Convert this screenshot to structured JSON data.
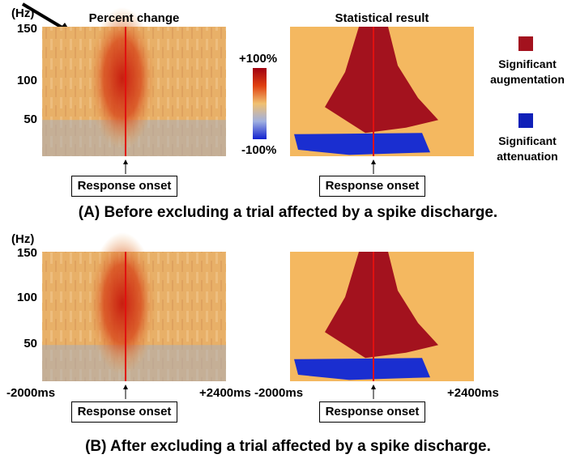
{
  "panels": [
    {
      "caption": "(A) Before excluding a trial affected by a spike discharge.",
      "y_axis_label": "(Hz)",
      "y_ticks": [
        "150",
        "100",
        "50"
      ],
      "plots": [
        {
          "title": "Percent change",
          "onset_label": "Response onset"
        },
        {
          "title": "Statistical result",
          "onset_label": "Response onset"
        }
      ]
    },
    {
      "caption": "(B) After excluding a trial affected by a spike discharge.",
      "y_axis_label": "(Hz)",
      "y_ticks": [
        "150",
        "100",
        "50"
      ],
      "plots": [
        {
          "onset_label": "Response onset",
          "x_start_label": "-2000ms",
          "x_end_label": "+2400ms"
        },
        {
          "onset_label": "Response onset",
          "x_start_label": "-2000ms",
          "x_end_label": "+2400ms"
        }
      ]
    }
  ],
  "colorbar": {
    "max_label": "+100%",
    "min_label": "-100%"
  },
  "legend": [
    {
      "label": "Significant augmentation",
      "color": "#a3121e"
    },
    {
      "label": "Significant attenuation",
      "color": "#1020b8"
    }
  ]
}
